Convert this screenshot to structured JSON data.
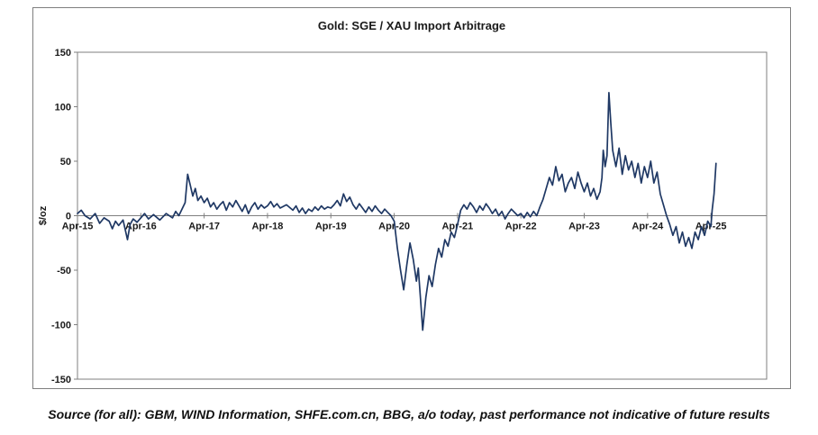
{
  "page": {
    "source_note": "Source (for all): GBM, WIND Information, SHFE.com.cn, BBG, a/o today, past performance not indicative of future results"
  },
  "chart_data": {
    "type": "line",
    "title": "Gold: SGE / XAU Import Arbitrage",
    "ylabel": "$/oz",
    "xlabel": "",
    "ylim": [
      -150,
      150
    ],
    "y_ticks": [
      150,
      100,
      50,
      0,
      -50,
      -100,
      -150
    ],
    "x_tick_labels": [
      "Apr-15",
      "Apr-16",
      "Apr-17",
      "Apr-18",
      "Apr-19",
      "Apr-20",
      "Apr-21",
      "Apr-22",
      "Apr-23",
      "Apr-24",
      "Apr-25"
    ],
    "x_tick_positions": [
      0,
      1,
      2,
      3,
      4,
      5,
      6,
      7,
      8,
      9,
      10
    ],
    "xlim": [
      0,
      10.88
    ],
    "grid": false,
    "legend": "none",
    "line_color": "#1F3864",
    "axis_color": "#7f7f7f",
    "series": [
      {
        "name": "SGE / XAU import arbitrage ($/oz)",
        "points": [
          [
            0,
            2
          ],
          [
            0.06,
            5
          ],
          [
            0.12,
            0
          ],
          [
            0.2,
            -3
          ],
          [
            0.28,
            2
          ],
          [
            0.35,
            -7
          ],
          [
            0.42,
            -2
          ],
          [
            0.5,
            -5
          ],
          [
            0.55,
            -12
          ],
          [
            0.6,
            -5
          ],
          [
            0.65,
            -9
          ],
          [
            0.72,
            -4
          ],
          [
            0.79,
            -22
          ],
          [
            0.83,
            -8
          ],
          [
            0.88,
            -3
          ],
          [
            0.94,
            -6
          ],
          [
            1,
            -2
          ],
          [
            1.06,
            2
          ],
          [
            1.12,
            -3
          ],
          [
            1.2,
            1
          ],
          [
            1.3,
            -4
          ],
          [
            1.4,
            2
          ],
          [
            1.5,
            -2
          ],
          [
            1.55,
            4
          ],
          [
            1.6,
            0
          ],
          [
            1.65,
            6
          ],
          [
            1.7,
            12
          ],
          [
            1.74,
            38
          ],
          [
            1.78,
            28
          ],
          [
            1.82,
            18
          ],
          [
            1.86,
            25
          ],
          [
            1.9,
            14
          ],
          [
            1.95,
            18
          ],
          [
            2,
            12
          ],
          [
            2.05,
            16
          ],
          [
            2.1,
            8
          ],
          [
            2.15,
            12
          ],
          [
            2.2,
            6
          ],
          [
            2.25,
            10
          ],
          [
            2.3,
            13
          ],
          [
            2.35,
            5
          ],
          [
            2.4,
            12
          ],
          [
            2.45,
            8
          ],
          [
            2.5,
            14
          ],
          [
            2.55,
            9
          ],
          [
            2.6,
            4
          ],
          [
            2.65,
            10
          ],
          [
            2.7,
            2
          ],
          [
            2.75,
            8
          ],
          [
            2.8,
            12
          ],
          [
            2.85,
            6
          ],
          [
            2.9,
            10
          ],
          [
            2.95,
            7
          ],
          [
            3,
            9
          ],
          [
            3.05,
            13
          ],
          [
            3.1,
            8
          ],
          [
            3.15,
            11
          ],
          [
            3.2,
            7
          ],
          [
            3.3,
            10
          ],
          [
            3.4,
            5
          ],
          [
            3.45,
            9
          ],
          [
            3.5,
            3
          ],
          [
            3.55,
            7
          ],
          [
            3.6,
            2
          ],
          [
            3.65,
            6
          ],
          [
            3.7,
            4
          ],
          [
            3.75,
            8
          ],
          [
            3.8,
            5
          ],
          [
            3.85,
            9
          ],
          [
            3.9,
            6
          ],
          [
            3.95,
            8
          ],
          [
            4,
            7
          ],
          [
            4.05,
            10
          ],
          [
            4.1,
            14
          ],
          [
            4.15,
            9
          ],
          [
            4.2,
            20
          ],
          [
            4.25,
            13
          ],
          [
            4.3,
            17
          ],
          [
            4.35,
            10
          ],
          [
            4.4,
            6
          ],
          [
            4.45,
            11
          ],
          [
            4.5,
            7
          ],
          [
            4.55,
            3
          ],
          [
            4.6,
            8
          ],
          [
            4.65,
            4
          ],
          [
            4.7,
            9
          ],
          [
            4.75,
            5
          ],
          [
            4.8,
            2
          ],
          [
            4.85,
            6
          ],
          [
            4.9,
            3
          ],
          [
            4.95,
            0
          ],
          [
            5,
            -5
          ],
          [
            5.05,
            -30
          ],
          [
            5.1,
            -50
          ],
          [
            5.15,
            -68
          ],
          [
            5.2,
            -45
          ],
          [
            5.25,
            -25
          ],
          [
            5.3,
            -40
          ],
          [
            5.35,
            -60
          ],
          [
            5.38,
            -48
          ],
          [
            5.42,
            -80
          ],
          [
            5.45,
            -105
          ],
          [
            5.5,
            -75
          ],
          [
            5.55,
            -55
          ],
          [
            5.6,
            -65
          ],
          [
            5.65,
            -45
          ],
          [
            5.7,
            -30
          ],
          [
            5.75,
            -38
          ],
          [
            5.8,
            -22
          ],
          [
            5.85,
            -28
          ],
          [
            5.9,
            -15
          ],
          [
            5.95,
            -20
          ],
          [
            6,
            -8
          ],
          [
            6.05,
            5
          ],
          [
            6.1,
            10
          ],
          [
            6.15,
            6
          ],
          [
            6.2,
            12
          ],
          [
            6.25,
            8
          ],
          [
            6.3,
            3
          ],
          [
            6.35,
            9
          ],
          [
            6.4,
            5
          ],
          [
            6.45,
            11
          ],
          [
            6.5,
            7
          ],
          [
            6.55,
            2
          ],
          [
            6.6,
            6
          ],
          [
            6.65,
            0
          ],
          [
            6.7,
            4
          ],
          [
            6.75,
            -3
          ],
          [
            6.8,
            2
          ],
          [
            6.85,
            6
          ],
          [
            6.9,
            3
          ],
          [
            6.95,
            0
          ],
          [
            7,
            2
          ],
          [
            7.05,
            -2
          ],
          [
            7.1,
            3
          ],
          [
            7.15,
            -1
          ],
          [
            7.2,
            4
          ],
          [
            7.25,
            0
          ],
          [
            7.3,
            8
          ],
          [
            7.35,
            15
          ],
          [
            7.4,
            25
          ],
          [
            7.45,
            35
          ],
          [
            7.5,
            28
          ],
          [
            7.55,
            45
          ],
          [
            7.6,
            32
          ],
          [
            7.65,
            38
          ],
          [
            7.7,
            22
          ],
          [
            7.75,
            30
          ],
          [
            7.8,
            35
          ],
          [
            7.85,
            25
          ],
          [
            7.9,
            40
          ],
          [
            7.95,
            30
          ],
          [
            8,
            22
          ],
          [
            8.05,
            30
          ],
          [
            8.1,
            18
          ],
          [
            8.15,
            25
          ],
          [
            8.2,
            15
          ],
          [
            8.25,
            22
          ],
          [
            8.28,
            35
          ],
          [
            8.3,
            60
          ],
          [
            8.33,
            45
          ],
          [
            8.36,
            55
          ],
          [
            8.39,
            113
          ],
          [
            8.42,
            85
          ],
          [
            8.45,
            60
          ],
          [
            8.5,
            45
          ],
          [
            8.55,
            62
          ],
          [
            8.6,
            38
          ],
          [
            8.65,
            55
          ],
          [
            8.7,
            42
          ],
          [
            8.75,
            50
          ],
          [
            8.8,
            35
          ],
          [
            8.85,
            48
          ],
          [
            8.9,
            30
          ],
          [
            8.95,
            45
          ],
          [
            9,
            35
          ],
          [
            9.05,
            50
          ],
          [
            9.1,
            30
          ],
          [
            9.15,
            40
          ],
          [
            9.2,
            20
          ],
          [
            9.25,
            10
          ],
          [
            9.3,
            0
          ],
          [
            9.35,
            -8
          ],
          [
            9.4,
            -18
          ],
          [
            9.45,
            -10
          ],
          [
            9.5,
            -25
          ],
          [
            9.55,
            -15
          ],
          [
            9.6,
            -28
          ],
          [
            9.65,
            -20
          ],
          [
            9.7,
            -30
          ],
          [
            9.75,
            -15
          ],
          [
            9.8,
            -22
          ],
          [
            9.85,
            -10
          ],
          [
            9.9,
            -18
          ],
          [
            9.95,
            -5
          ],
          [
            10,
            -10
          ],
          [
            10.02,
            5
          ],
          [
            10.05,
            20
          ],
          [
            10.08,
            48
          ]
        ]
      }
    ]
  }
}
